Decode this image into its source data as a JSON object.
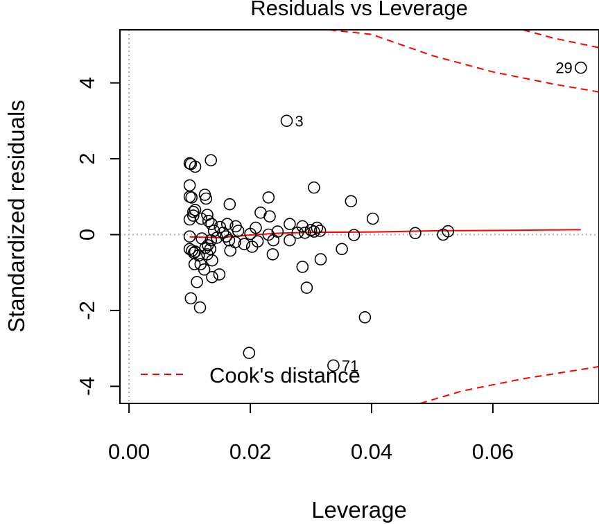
{
  "chart_data": {
    "type": "scatter",
    "title": "Residuals vs Leverage",
    "xlabel": "Leverage",
    "ylabel": "Standardized residuals",
    "xlim": [
      -0.0015,
      0.0775
    ],
    "ylim": [
      -4.45,
      5.4
    ],
    "x_ticks": [
      0.0,
      0.02,
      0.04,
      0.06
    ],
    "x_tick_labels": [
      "0.00",
      "0.02",
      "0.04",
      "0.06"
    ],
    "y_ticks": [
      -4,
      -2,
      0,
      2,
      4
    ],
    "y_tick_labels": [
      "-4",
      "-2",
      "0",
      "2",
      "4"
    ],
    "legend": {
      "position": "bottom-left",
      "label": "Cook's distance",
      "color": "#ff0000",
      "style": "dashed"
    },
    "reference_lines": {
      "vertical_at_x": 0,
      "horizontal_at_y": 0,
      "color": "#b0b0b0",
      "style": "dotted"
    },
    "annotations": [
      {
        "label": "29",
        "x": 0.0745,
        "y": 4.4
      },
      {
        "label": "3",
        "x": 0.026,
        "y": 3.0
      },
      {
        "label": "71",
        "x": 0.0337,
        "y": -3.45
      }
    ],
    "points": [
      [
        0.0745,
        4.4
      ],
      [
        0.026,
        3.0
      ],
      [
        0.0337,
        -3.45
      ],
      [
        0.0198,
        -3.12
      ],
      [
        0.01,
        1.88
      ],
      [
        0.0102,
        1.86
      ],
      [
        0.0109,
        1.79
      ],
      [
        0.0135,
        1.96
      ],
      [
        0.01,
        1.3
      ],
      [
        0.01,
        1.0
      ],
      [
        0.0103,
        0.98
      ],
      [
        0.0125,
        1.05
      ],
      [
        0.0127,
        0.95
      ],
      [
        0.0166,
        0.8
      ],
      [
        0.0305,
        1.24
      ],
      [
        0.023,
        0.98
      ],
      [
        0.0366,
        0.88
      ],
      [
        0.0106,
        0.6
      ],
      [
        0.0109,
        0.65
      ],
      [
        0.0106,
        0.5
      ],
      [
        0.0129,
        0.52
      ],
      [
        0.0217,
        0.58
      ],
      [
        0.0232,
        0.48
      ],
      [
        0.0402,
        0.42
      ],
      [
        0.01,
        0.4
      ],
      [
        0.0119,
        0.42
      ],
      [
        0.0131,
        0.36
      ],
      [
        0.0136,
        0.28
      ],
      [
        0.015,
        0.2
      ],
      [
        0.0162,
        0.28
      ],
      [
        0.0176,
        0.22
      ],
      [
        0.0209,
        0.18
      ],
      [
        0.0265,
        0.28
      ],
      [
        0.0286,
        0.22
      ],
      [
        0.03,
        0.12
      ],
      [
        0.0305,
        0.08
      ],
      [
        0.031,
        0.18
      ],
      [
        0.0315,
        0.1
      ],
      [
        0.0245,
        0.08
      ],
      [
        0.0278,
        0.05
      ],
      [
        0.014,
        0.1
      ],
      [
        0.0155,
        0.05
      ],
      [
        0.018,
        0.1
      ],
      [
        0.02,
        0.02
      ],
      [
        0.023,
        0.0
      ],
      [
        0.029,
        0.05
      ],
      [
        0.0472,
        0.04
      ],
      [
        0.0371,
        -0.01
      ],
      [
        0.0526,
        0.09
      ],
      [
        0.0518,
        0.0
      ],
      [
        0.01,
        -0.05
      ],
      [
        0.012,
        -0.1
      ],
      [
        0.0135,
        -0.15
      ],
      [
        0.0145,
        -0.08
      ],
      [
        0.016,
        -0.05
      ],
      [
        0.0165,
        -0.15
      ],
      [
        0.0175,
        -0.2
      ],
      [
        0.019,
        -0.25
      ],
      [
        0.0203,
        -0.32
      ],
      [
        0.0212,
        -0.18
      ],
      [
        0.0238,
        -0.15
      ],
      [
        0.0265,
        -0.15
      ],
      [
        0.01,
        -0.38
      ],
      [
        0.0104,
        -0.42
      ],
      [
        0.0107,
        -0.48
      ],
      [
        0.0109,
        -0.45
      ],
      [
        0.0115,
        -0.55
      ],
      [
        0.0126,
        -0.35
      ],
      [
        0.0129,
        -0.52
      ],
      [
        0.013,
        -0.28
      ],
      [
        0.0134,
        -0.38
      ],
      [
        0.0167,
        -0.42
      ],
      [
        0.0237,
        -0.52
      ],
      [
        0.0351,
        -0.38
      ],
      [
        0.0316,
        -0.65
      ],
      [
        0.0137,
        -0.68
      ],
      [
        0.0108,
        -0.78
      ],
      [
        0.0118,
        -0.78
      ],
      [
        0.0124,
        -0.92
      ],
      [
        0.0286,
        -0.85
      ],
      [
        0.0112,
        -1.25
      ],
      [
        0.0137,
        -1.12
      ],
      [
        0.0149,
        -1.05
      ],
      [
        0.0293,
        -1.4
      ],
      [
        0.0102,
        -1.68
      ],
      [
        0.0117,
        -1.92
      ],
      [
        0.0389,
        -2.18
      ]
    ],
    "smoother": [
      [
        0.01,
        -0.06
      ],
      [
        0.015,
        -0.08
      ],
      [
        0.02,
        -0.01
      ],
      [
        0.025,
        0.04
      ],
      [
        0.03,
        0.06
      ],
      [
        0.04,
        0.07
      ],
      [
        0.05,
        0.1
      ],
      [
        0.06,
        0.11
      ],
      [
        0.0745,
        0.13
      ]
    ],
    "cooks_distance_curves": [
      {
        "level": 0.5,
        "upper": [
          [
            0.033,
            5.4
          ],
          [
            0.04,
            5.28
          ],
          [
            0.05,
            4.72
          ],
          [
            0.06,
            4.29
          ],
          [
            0.07,
            3.97
          ],
          [
            0.0775,
            3.76
          ]
        ],
        "lower": [
          [
            0.048,
            -4.45
          ],
          [
            0.055,
            -4.12
          ],
          [
            0.065,
            -3.8
          ],
          [
            0.0775,
            -3.48
          ]
        ]
      },
      {
        "level": 1.0,
        "upper": [
          [
            0.065,
            5.4
          ],
          [
            0.07,
            5.18
          ],
          [
            0.0775,
            4.93
          ]
        ]
      }
    ],
    "grid": false
  }
}
